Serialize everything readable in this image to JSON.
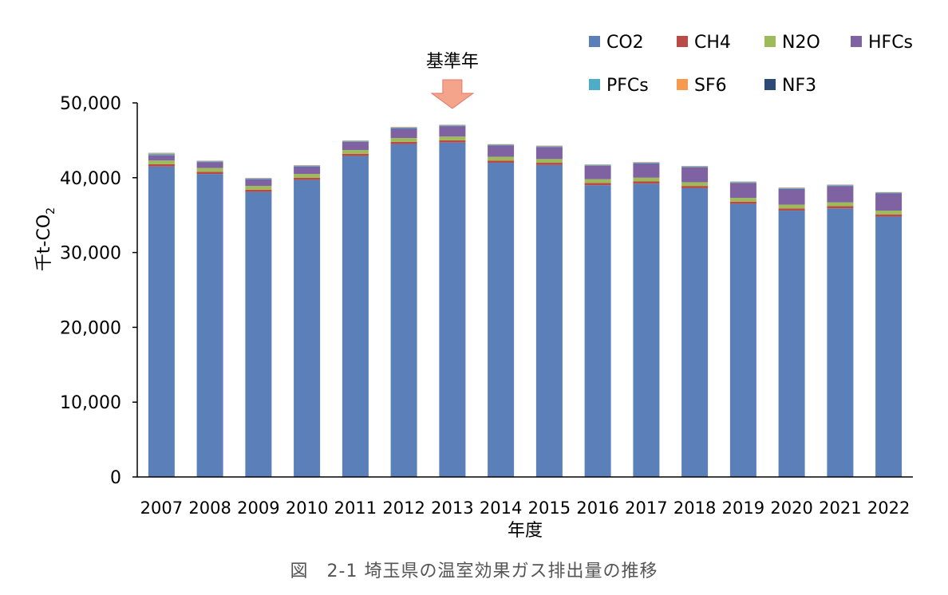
{
  "caption": "図　2-1 埼玉県の温室効果ガス排出量の推移",
  "annotation": "基準年",
  "colors": {
    "CO2": "#5b7fb8",
    "CH4": "#b94a46",
    "N2O": "#9dbb58",
    "HFCs": "#7e62a2",
    "PFCs": "#4eacc6",
    "SF6": "#f59a4f",
    "NF3": "#2c4a74",
    "arrow": "#f4a48a",
    "arrow_stroke": "#e0786a"
  },
  "chart_data": {
    "type": "bar",
    "stacked": true,
    "title": "",
    "xlabel": "年度",
    "ylabel": "千t-CO2",
    "ylim": [
      0,
      50000
    ],
    "yticks": [
      0,
      10000,
      20000,
      30000,
      40000,
      50000
    ],
    "ytick_labels": [
      "0",
      "10,000",
      "20,000",
      "30,000",
      "40,000",
      "50,000"
    ],
    "grid": false,
    "legend_position": "top-right",
    "annotation_category": "2013",
    "categories": [
      "2007",
      "2008",
      "2009",
      "2010",
      "2011",
      "2012",
      "2013",
      "2014",
      "2015",
      "2016",
      "2017",
      "2018",
      "2019",
      "2020",
      "2021",
      "2022"
    ],
    "series": [
      {
        "name": "CO2",
        "values": [
          41500,
          40500,
          38100,
          39700,
          42900,
          44500,
          44700,
          42000,
          41700,
          39000,
          39200,
          38600,
          36500,
          35600,
          35900,
          34800
        ]
      },
      {
        "name": "CH4",
        "values": [
          300,
          300,
          300,
          300,
          300,
          300,
          300,
          300,
          300,
          300,
          300,
          300,
          300,
          300,
          300,
          300
        ]
      },
      {
        "name": "N2O",
        "values": [
          500,
          500,
          500,
          500,
          500,
          500,
          500,
          500,
          500,
          500,
          500,
          500,
          500,
          500,
          500,
          500
        ]
      },
      {
        "name": "HFCs",
        "values": [
          700,
          800,
          900,
          1000,
          1100,
          1300,
          1400,
          1500,
          1600,
          1800,
          1900,
          2000,
          2000,
          2100,
          2200,
          2300
        ]
      },
      {
        "name": "PFCs",
        "values": [
          200,
          100,
          100,
          100,
          100,
          100,
          100,
          100,
          100,
          100,
          100,
          100,
          100,
          100,
          100,
          100
        ]
      },
      {
        "name": "SF6",
        "values": [
          100,
          50,
          50,
          50,
          50,
          50,
          50,
          50,
          50,
          50,
          50,
          50,
          50,
          50,
          50,
          50
        ]
      },
      {
        "name": "NF3",
        "values": [
          20,
          20,
          20,
          20,
          20,
          20,
          20,
          20,
          20,
          20,
          20,
          20,
          20,
          20,
          20,
          20
        ]
      }
    ]
  }
}
